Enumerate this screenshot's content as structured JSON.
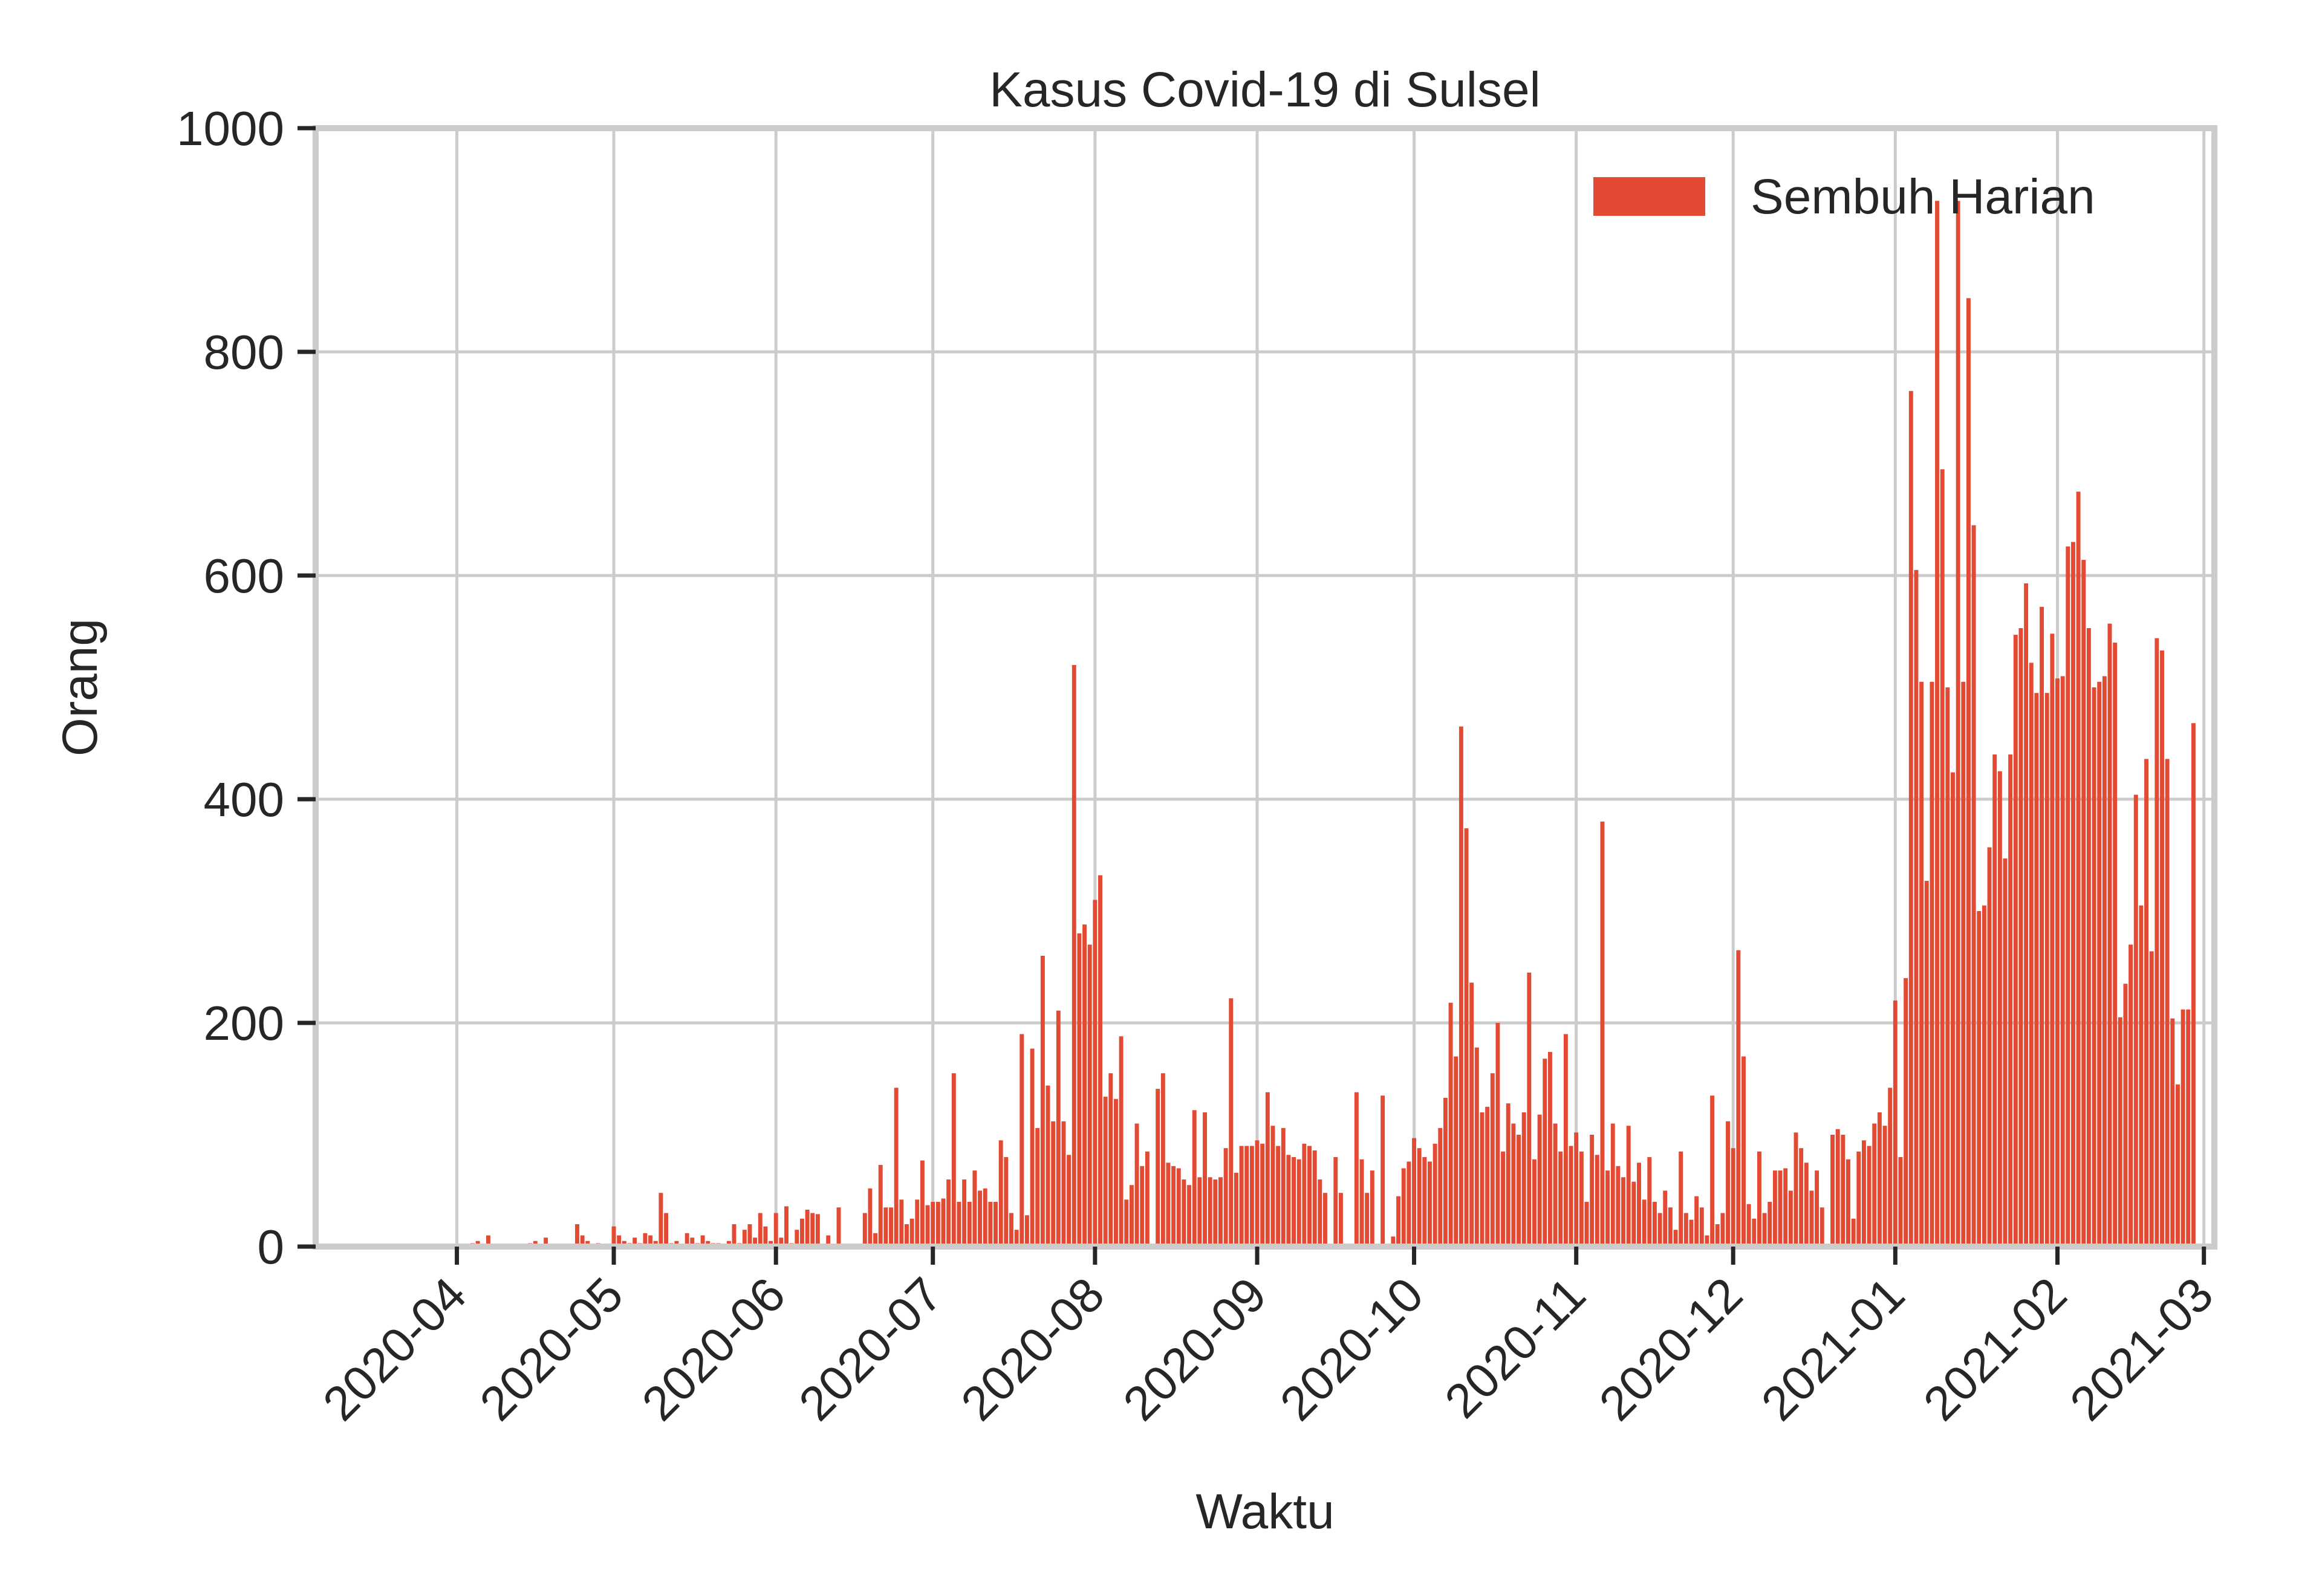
{
  "chart_data": {
    "type": "bar",
    "title": "Kasus Covid-19 di Sulsel",
    "xlabel": "Waktu",
    "ylabel": "Orang",
    "ylim": [
      0,
      1000
    ],
    "xlim": [
      "2020-03-05",
      "2021-03-03"
    ],
    "yticks": [
      0,
      200,
      400,
      600,
      800,
      1000
    ],
    "xticks": [
      "2020-04",
      "2020-05",
      "2020-06",
      "2020-07",
      "2020-08",
      "2020-09",
      "2020-10",
      "2020-11",
      "2020-12",
      "2021-01",
      "2021-02",
      "2021-03"
    ],
    "grid": true,
    "legend_position": "top-right",
    "series": [
      {
        "name": "Sembuh Harian",
        "color": "#e24a33",
        "start_date": "2020-04-03",
        "values": [
          2,
          3,
          5,
          0,
          10,
          0,
          0,
          0,
          0,
          0,
          0,
          0,
          3,
          5,
          0,
          8,
          0,
          0,
          0,
          0,
          0,
          20,
          10,
          5,
          0,
          3,
          0,
          0,
          18,
          10,
          5,
          3,
          8,
          3,
          12,
          10,
          5,
          48,
          30,
          3,
          5,
          0,
          12,
          8,
          3,
          10,
          5,
          3,
          3,
          0,
          5,
          20,
          3,
          15,
          20,
          8,
          30,
          18,
          5,
          30,
          8,
          36,
          3,
          15,
          25,
          33,
          30,
          29,
          0,
          10,
          0,
          35,
          0,
          0,
          0,
          0,
          30,
          52,
          12,
          73,
          35,
          35,
          142,
          42,
          20,
          25,
          42,
          77,
          37,
          40,
          40,
          43,
          60,
          155,
          40,
          60,
          40,
          68,
          50,
          52,
          40,
          40,
          95,
          80,
          30,
          15,
          190,
          28,
          177,
          106,
          260,
          144,
          112,
          211,
          112,
          82,
          520,
          280,
          288,
          270,
          310,
          332,
          134,
          155,
          132,
          188,
          42,
          55,
          110,
          72,
          85,
          0,
          141,
          155,
          75,
          72,
          70,
          60,
          55,
          122,
          62,
          120,
          62,
          60,
          62,
          88,
          222,
          66,
          90,
          90,
          90,
          95,
          92,
          138,
          108,
          90,
          106,
          82,
          80,
          78,
          92,
          90,
          86,
          60,
          48,
          0,
          80,
          48,
          0,
          0,
          138,
          78,
          48,
          68,
          0,
          135,
          0,
          9,
          45,
          70,
          76,
          97,
          88,
          80,
          76,
          92,
          106,
          133,
          218,
          170,
          465,
          374,
          236,
          178,
          120,
          125,
          155,
          200,
          85,
          128,
          110,
          100,
          120,
          245,
          78,
          118,
          168,
          174,
          110,
          85,
          190,
          90,
          102,
          85,
          40,
          100,
          82,
          380,
          68,
          110,
          72,
          62,
          108,
          58,
          75,
          42,
          80,
          40,
          30,
          50,
          35,
          15,
          85,
          30,
          24,
          45,
          35,
          10,
          135,
          20,
          30,
          112,
          88,
          265,
          170,
          38,
          25,
          85,
          30,
          40,
          68,
          68,
          70,
          50,
          102,
          88,
          75,
          50,
          68,
          35,
          0,
          100,
          105,
          100,
          78,
          25,
          85,
          95,
          90,
          110,
          120,
          108,
          142,
          220,
          80,
          240,
          765,
          605,
          505,
          327,
          505,
          935,
          695,
          500,
          424,
          935,
          505,
          848,
          645,
          300,
          305,
          357,
          440,
          425,
          347,
          440,
          547,
          553,
          593,
          522,
          495,
          572,
          495,
          548,
          508,
          510,
          626,
          630,
          675,
          614,
          553,
          500,
          505,
          510,
          557,
          540,
          205,
          235,
          270,
          404,
          305,
          436,
          264,
          544,
          533,
          436,
          204,
          145,
          212,
          212,
          468
        ]
      }
    ]
  }
}
